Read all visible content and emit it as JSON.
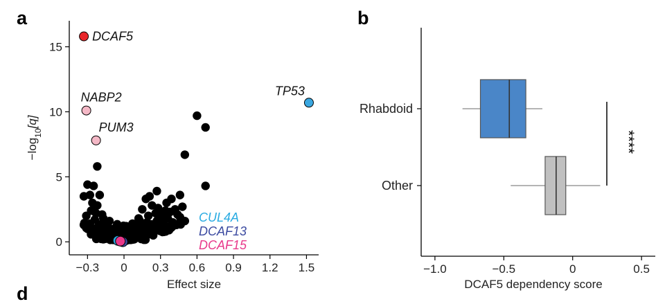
{
  "panel_labels": {
    "a": "a",
    "b": "b",
    "d": "d"
  },
  "chart_data": [
    {
      "panel": "a",
      "type": "scatter",
      "xlabel": "Effect size",
      "ylabel_html": {
        "pre": "−log",
        "sub": "10",
        "post": "[q]"
      },
      "xlim": [
        -0.45,
        1.6
      ],
      "ylim": [
        -1,
        17
      ],
      "xticks": [
        {
          "value": -0.3,
          "label": "−0.3"
        },
        {
          "value": 0,
          "label": "0"
        },
        {
          "value": 0.3,
          "label": "0.3"
        },
        {
          "value": 0.6,
          "label": "0.6"
        },
        {
          "value": 0.9,
          "label": "0.9"
        },
        {
          "value": 1.2,
          "label": "1.2"
        },
        {
          "value": 1.5,
          "label": "1.5"
        }
      ],
      "yticks": [
        {
          "value": 0,
          "label": "0"
        },
        {
          "value": 5,
          "label": "5"
        },
        {
          "value": 10,
          "label": "10"
        },
        {
          "value": 15,
          "label": "15"
        }
      ],
      "colors": {
        "background_points": "#000000",
        "DCAF5": "#e8262a",
        "TP53": "#3aa7e0",
        "NABP2": "#f4b8c6",
        "PUM3": "#f4b8c6",
        "CUL4A": "#29abe2",
        "DCAF13": "#3b4aa0",
        "DCAF15": "#e8388a"
      },
      "highlighted": [
        {
          "gene": "DCAF5",
          "x": -0.33,
          "y": 15.8,
          "color": "#e8262a"
        },
        {
          "gene": "TP53",
          "x": 1.52,
          "y": 10.7,
          "color": "#3aa7e0"
        },
        {
          "gene": "NABP2",
          "x": -0.31,
          "y": 10.1,
          "color": "#f4b8c6"
        },
        {
          "gene": "PUM3",
          "x": -0.23,
          "y": 7.8,
          "color": "#f4b8c6"
        }
      ],
      "labeled_near_zero": [
        {
          "gene": "CUL4A",
          "x": -0.05,
          "y": 0.1,
          "color": "#29abe2"
        },
        {
          "gene": "DCAF13",
          "x": -0.01,
          "y": 0.0,
          "color": "#3b4aa0"
        },
        {
          "gene": "DCAF15",
          "x": -0.03,
          "y": 0.05,
          "color": "#e8388a"
        }
      ],
      "points": [
        [
          0.6,
          9.7
        ],
        [
          0.67,
          8.8
        ],
        [
          0.5,
          6.7
        ],
        [
          0.67,
          4.3
        ],
        [
          -0.22,
          5.8
        ],
        [
          -0.3,
          4.4
        ],
        [
          -0.25,
          4.3
        ],
        [
          -0.28,
          3.6
        ],
        [
          -0.33,
          3.5
        ],
        [
          -0.2,
          3.6
        ],
        [
          -0.22,
          2.8
        ],
        [
          -0.27,
          2.4
        ],
        [
          -0.31,
          2.0
        ],
        [
          -0.18,
          2.1
        ],
        [
          -0.24,
          1.7
        ],
        [
          -0.33,
          1.3
        ],
        [
          -0.28,
          1.4
        ],
        [
          -0.21,
          1.2
        ],
        [
          -0.15,
          1.4
        ],
        [
          -0.19,
          0.9
        ],
        [
          -0.26,
          0.9
        ],
        [
          -0.11,
          1.0
        ],
        [
          -0.14,
          0.6
        ],
        [
          -0.08,
          0.7
        ],
        [
          -0.2,
          0.5
        ],
        [
          -0.12,
          0.3
        ],
        [
          -0.05,
          0.4
        ],
        [
          -0.17,
          0.2
        ],
        [
          -0.09,
          0.15
        ],
        [
          -0.02,
          0.2
        ],
        [
          -0.3,
          1.0
        ],
        [
          -0.23,
          2.2
        ],
        [
          -0.17,
          1.8
        ],
        [
          -0.12,
          1.6
        ],
        [
          -0.26,
          3.0
        ],
        [
          0.18,
          3.3
        ],
        [
          0.23,
          2.8
        ],
        [
          0.28,
          2.6
        ],
        [
          0.15,
          2.5
        ],
        [
          0.38,
          2.3
        ],
        [
          0.42,
          2.5
        ],
        [
          0.31,
          2.1
        ],
        [
          0.2,
          2.0
        ],
        [
          0.36,
          1.8
        ],
        [
          0.27,
          1.6
        ],
        [
          0.12,
          1.8
        ],
        [
          0.46,
          1.9
        ],
        [
          0.41,
          1.4
        ],
        [
          0.33,
          1.3
        ],
        [
          0.22,
          1.3
        ],
        [
          0.16,
          1.2
        ],
        [
          0.09,
          1.2
        ],
        [
          0.3,
          1.0
        ],
        [
          0.24,
          0.9
        ],
        [
          0.37,
          0.9
        ],
        [
          0.17,
          0.8
        ],
        [
          0.11,
          0.8
        ],
        [
          0.06,
          0.6
        ],
        [
          0.21,
          0.6
        ],
        [
          0.13,
          0.5
        ],
        [
          0.03,
          0.4
        ],
        [
          0.08,
          0.3
        ],
        [
          0.16,
          0.4
        ],
        [
          0.02,
          0.1
        ],
        [
          0.05,
          0.15
        ],
        [
          0.43,
          1.3
        ],
        [
          0.5,
          1.6
        ],
        [
          0.46,
          3.6
        ],
        [
          0.27,
          3.9
        ],
        [
          0.35,
          3.0
        ],
        [
          0.48,
          2.7
        ],
        [
          0.32,
          1.6
        ],
        [
          0.4,
          1.2
        ],
        [
          0.26,
          2.2
        ],
        [
          0.19,
          1.5
        ],
        [
          0.25,
          1.1
        ],
        [
          0.14,
          1.0
        ],
        [
          0.29,
          1.9
        ],
        [
          0.1,
          0.9
        ],
        [
          0.34,
          2.4
        ],
        [
          0.0,
          0.5
        ],
        [
          -0.04,
          0.8
        ],
        [
          0.04,
          0.9
        ],
        [
          0.07,
          1.4
        ],
        [
          -0.06,
          1.2
        ],
        [
          0.21,
          3.5
        ],
        [
          0.13,
          1.6
        ],
        [
          0.44,
          2.1
        ],
        [
          0.39,
          3.3
        ],
        [
          0.24,
          0.5
        ]
      ]
    },
    {
      "panel": "b",
      "type": "box",
      "xlabel": "DCAF5 dependency score",
      "xlim": [
        -1.1,
        0.6
      ],
      "xticks": [
        {
          "value": -1.0,
          "label": "−1.0"
        },
        {
          "value": -0.5,
          "label": "−0.5"
        },
        {
          "value": 0,
          "label": "0"
        },
        {
          "value": 0.5,
          "label": "0.5"
        }
      ],
      "significance": "****",
      "categories": [
        "Rhabdoid",
        "Other"
      ],
      "boxes": [
        {
          "name": "Rhabdoid",
          "whisker_low": -0.8,
          "q1": -0.67,
          "median": -0.46,
          "q3": -0.34,
          "whisker_high": -0.22,
          "color": "#4a86c8"
        },
        {
          "name": "Other",
          "whisker_low": -0.45,
          "q1": -0.2,
          "median": -0.12,
          "q3": -0.05,
          "whisker_high": 0.2,
          "color": "#c0c0c0"
        }
      ]
    }
  ]
}
